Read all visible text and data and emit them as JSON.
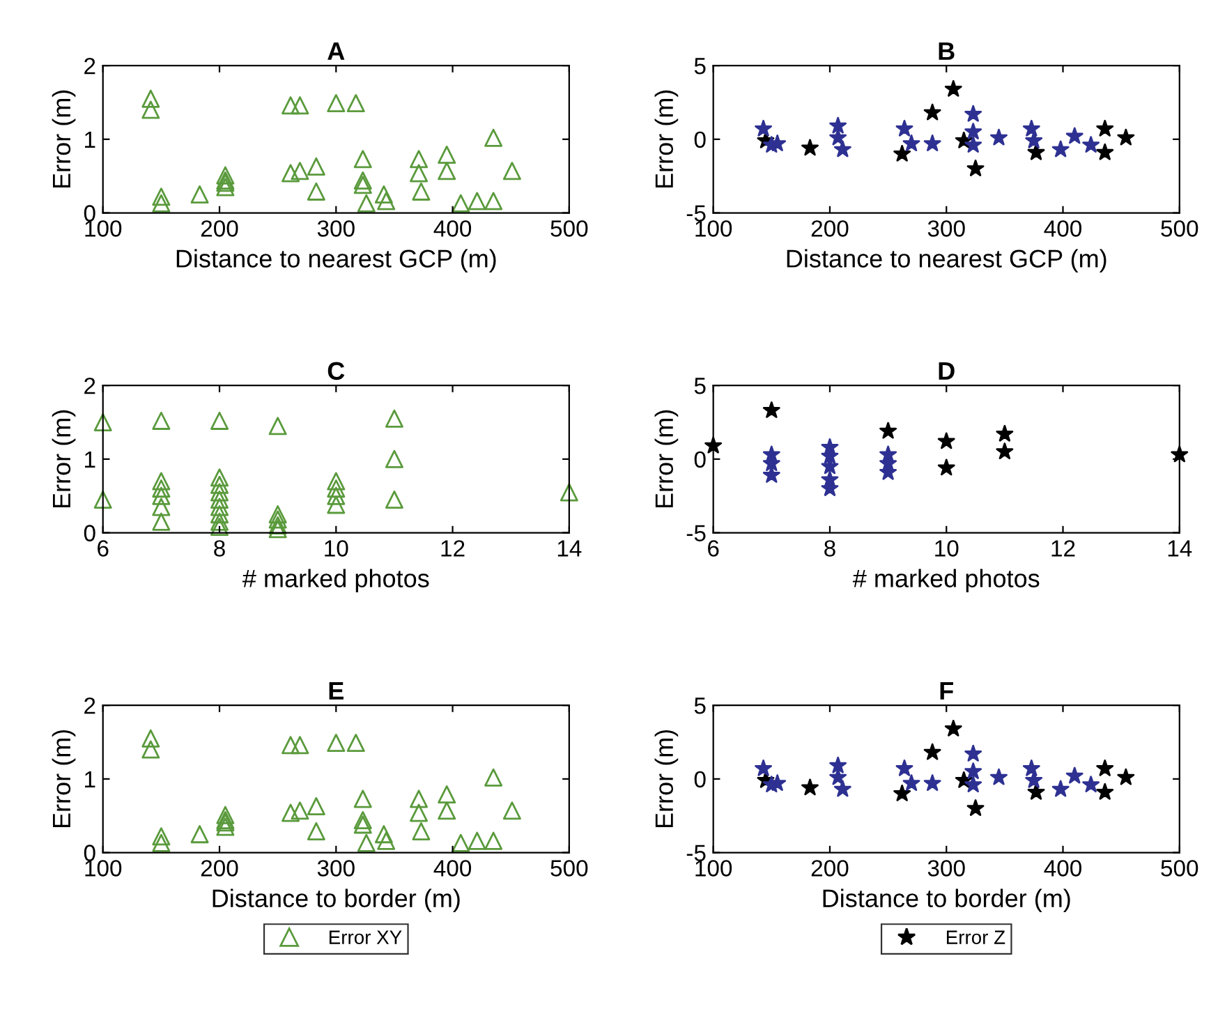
{
  "chart_data": [
    {
      "type": "scatter",
      "title": "A",
      "xlabel": "Distance to nearest GCP (m)",
      "ylabel": "Error (m)",
      "xlim": [
        100,
        500
      ],
      "xticks": [
        100,
        200,
        300,
        400,
        500
      ],
      "ylim": [
        0,
        2
      ],
      "yticks": [
        0,
        1,
        2
      ],
      "grid": false,
      "legend": false,
      "series": [
        {
          "color": "#5a9a3c",
          "marker": "triangle",
          "x": [
            141,
            141,
            150,
            150,
            183,
            205,
            205,
            205,
            205,
            261,
            269,
            300,
            317,
            261,
            269,
            283,
            283,
            323,
            323,
            323,
            326,
            341,
            343,
            371,
            371,
            373,
            395,
            395,
            407,
            421,
            435,
            435,
            451
          ],
          "values": [
            1.55,
            1.4,
            0.22,
            0.13,
            0.25,
            0.51,
            0.44,
            0.41,
            0.35,
            1.46,
            1.46,
            1.49,
            1.49,
            0.54,
            0.57,
            0.63,
            0.29,
            0.73,
            0.44,
            0.38,
            0.13,
            0.25,
            0.16,
            0.73,
            0.54,
            0.29,
            0.79,
            0.57,
            0.13,
            0.16,
            0.16,
            1.02,
            0.57
          ]
        }
      ]
    },
    {
      "type": "scatter",
      "title": "B",
      "xlabel": "Distance to nearest GCP (m)",
      "ylabel": "Error (m)",
      "xlim": [
        100,
        500
      ],
      "xticks": [
        100,
        200,
        300,
        400,
        500
      ],
      "ylim": [
        -5,
        5
      ],
      "yticks": [
        -5,
        0,
        5
      ],
      "grid": false,
      "legend": false,
      "series": [
        {
          "color": "#000000",
          "marker": "star",
          "x": [
            145,
            183,
            288,
            306,
            325,
            262,
            377,
            436,
            436,
            454,
            315
          ],
          "values": [
            -0.1,
            -0.6,
            1.8,
            3.4,
            -2.0,
            -1.0,
            -0.9,
            0.7,
            -0.9,
            0.1,
            -0.1
          ]
        },
        {
          "color": "#2e3192",
          "marker": "star",
          "x": [
            143,
            150,
            155,
            207,
            207,
            211,
            264,
            270,
            288,
            323,
            323,
            323,
            345,
            373,
            375,
            398,
            410,
            424
          ],
          "values": [
            0.7,
            -0.4,
            -0.3,
            0.9,
            0.1,
            -0.7,
            0.7,
            -0.3,
            -0.3,
            1.7,
            0.5,
            -0.4,
            0.1,
            0.7,
            -0.1,
            -0.7,
            0.2,
            -0.4
          ]
        }
      ]
    },
    {
      "type": "scatter",
      "title": "C",
      "xlabel": "# marked photos",
      "ylabel": "Error (m)",
      "xlim": [
        6,
        14
      ],
      "xticks": [
        6,
        8,
        10,
        12,
        14
      ],
      "ylim": [
        0,
        2
      ],
      "yticks": [
        0,
        1,
        2
      ],
      "grid": false,
      "legend": false,
      "series": [
        {
          "color": "#5a9a3c",
          "marker": "triangle",
          "x": [
            6,
            6,
            7,
            7,
            7,
            7,
            7,
            7,
            8,
            8,
            8,
            8,
            8,
            8,
            8,
            8,
            8,
            9,
            9,
            9,
            9,
            9,
            10,
            10,
            10,
            10,
            11,
            11,
            11,
            14
          ],
          "values": [
            1.5,
            0.45,
            1.52,
            0.7,
            0.6,
            0.5,
            0.35,
            0.15,
            1.52,
            0.75,
            0.65,
            0.55,
            0.45,
            0.35,
            0.25,
            0.15,
            0.08,
            1.45,
            0.25,
            0.18,
            0.1,
            0.05,
            0.7,
            0.6,
            0.5,
            0.38,
            1.55,
            1.0,
            0.45,
            0.55
          ]
        }
      ]
    },
    {
      "type": "scatter",
      "title": "D",
      "xlabel": "# marked photos",
      "ylabel": "Error (m)",
      "xlim": [
        6,
        14
      ],
      "xticks": [
        6,
        8,
        10,
        12,
        14
      ],
      "ylim": [
        -5,
        5
      ],
      "yticks": [
        -5,
        0,
        5
      ],
      "grid": false,
      "legend": false,
      "series": [
        {
          "color": "#000000",
          "marker": "star",
          "x": [
            6,
            7,
            9,
            10,
            10,
            11,
            11,
            14
          ],
          "values": [
            0.9,
            3.3,
            1.9,
            1.2,
            -0.6,
            1.7,
            0.5,
            0.3
          ]
        },
        {
          "color": "#2e3192",
          "marker": "star",
          "x": [
            7,
            7,
            7,
            8,
            8,
            8,
            8,
            8,
            9,
            9,
            9
          ],
          "values": [
            0.3,
            -0.3,
            -1.1,
            0.8,
            0.2,
            -0.5,
            -1.4,
            -2.0,
            0.3,
            -0.3,
            -0.9
          ]
        }
      ]
    },
    {
      "type": "scatter",
      "title": "E",
      "xlabel": "Distance to border (m)",
      "ylabel": "Error (m)",
      "xlim": [
        100,
        500
      ],
      "xticks": [
        100,
        200,
        300,
        400,
        500
      ],
      "ylim": [
        0,
        2
      ],
      "yticks": [
        0,
        1,
        2
      ],
      "grid": false,
      "legend": "bottom",
      "series": [
        {
          "name": "Error XY",
          "color": "#5a9a3c",
          "marker": "triangle",
          "x": [
            141,
            141,
            150,
            150,
            183,
            205,
            205,
            205,
            205,
            261,
            269,
            300,
            317,
            261,
            269,
            283,
            283,
            323,
            323,
            323,
            326,
            341,
            343,
            371,
            371,
            373,
            395,
            395,
            407,
            421,
            435,
            435,
            451
          ],
          "values": [
            1.55,
            1.4,
            0.22,
            0.13,
            0.25,
            0.51,
            0.44,
            0.41,
            0.35,
            1.46,
            1.46,
            1.49,
            1.49,
            0.54,
            0.57,
            0.63,
            0.29,
            0.73,
            0.44,
            0.38,
            0.13,
            0.25,
            0.16,
            0.73,
            0.54,
            0.29,
            0.79,
            0.57,
            0.13,
            0.16,
            0.16,
            1.02,
            0.57
          ]
        }
      ]
    },
    {
      "type": "scatter",
      "title": "F",
      "xlabel": "Distance to border (m)",
      "ylabel": "Error (m)",
      "xlim": [
        100,
        500
      ],
      "xticks": [
        100,
        200,
        300,
        400,
        500
      ],
      "ylim": [
        -5,
        5
      ],
      "yticks": [
        -5,
        0,
        5
      ],
      "grid": false,
      "legend": "bottom",
      "series": [
        {
          "name": "Error Z",
          "color": "#000000",
          "marker": "star",
          "x": [
            145,
            183,
            288,
            306,
            325,
            262,
            377,
            436,
            436,
            454,
            315
          ],
          "values": [
            -0.1,
            -0.6,
            1.8,
            3.4,
            -2.0,
            -1.0,
            -0.9,
            0.7,
            -0.9,
            0.1,
            -0.1
          ]
        },
        {
          "color": "#2e3192",
          "marker": "star",
          "x": [
            143,
            150,
            155,
            207,
            207,
            211,
            264,
            270,
            288,
            323,
            323,
            323,
            345,
            373,
            375,
            398,
            410,
            424
          ],
          "values": [
            0.7,
            -0.4,
            -0.3,
            0.9,
            0.1,
            -0.7,
            0.7,
            -0.3,
            -0.3,
            1.7,
            0.5,
            -0.4,
            0.1,
            0.7,
            -0.1,
            -0.7,
            0.2,
            -0.4
          ]
        }
      ]
    }
  ]
}
